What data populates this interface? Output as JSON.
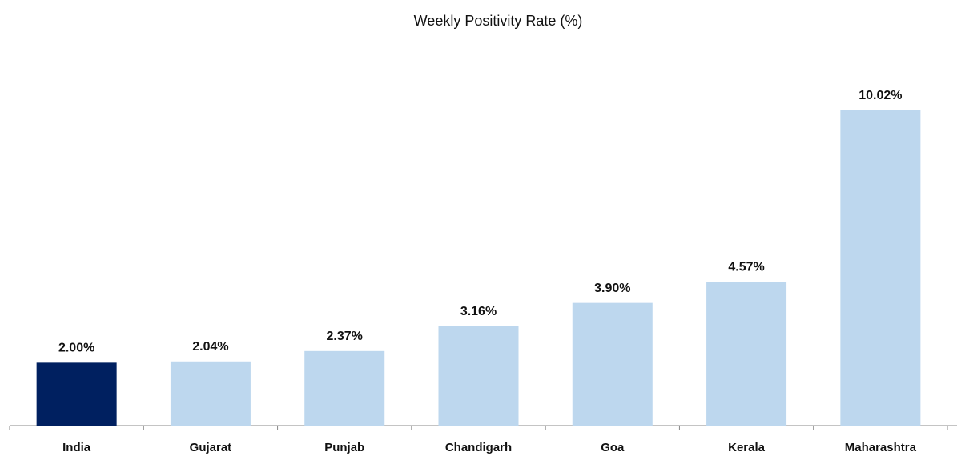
{
  "chart_data": {
    "type": "bar",
    "title": "Weekly Positivity Rate (%)",
    "categories": [
      "India",
      "Gujarat",
      "Punjab",
      "Chandigarh",
      "Goa",
      "Kerala",
      "Maharashtra"
    ],
    "values": [
      2.0,
      2.04,
      2.37,
      3.16,
      3.9,
      4.57,
      10.02
    ],
    "value_labels": [
      "2.00%",
      "2.04%",
      "2.37%",
      "3.16%",
      "3.90%",
      "4.57%",
      "10.02%"
    ],
    "colors": [
      "#002060",
      "#bdd7ee",
      "#bdd7ee",
      "#bdd7ee",
      "#bdd7ee",
      "#bdd7ee",
      "#bdd7ee"
    ]
  }
}
